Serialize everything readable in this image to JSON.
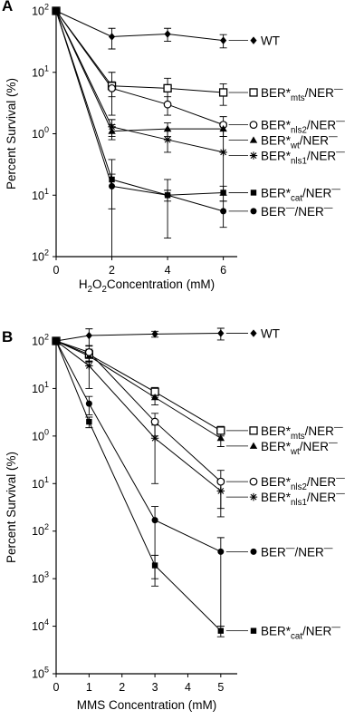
{
  "panels": [
    {
      "letter": "A",
      "ylabel": "Percent Survival (%)",
      "xlabel_parts": [
        {
          "text": "H"
        },
        {
          "text": "2",
          "sub": true
        },
        {
          "text": "O"
        },
        {
          "text": "2",
          "sub": true
        },
        {
          "text": "Concentration (mM)"
        }
      ]
    },
    {
      "letter": "B",
      "ylabel": "Percent Survival (%)",
      "xlabel_parts": [
        {
          "text": "MMS Concentration (mM)"
        }
      ]
    }
  ],
  "chart_data": [
    {
      "type": "line",
      "title": "",
      "xlabel": "H2O2 Concentration (mM)",
      "ylabel": "Percent Survival (%)",
      "yscale": "log",
      "xlim": [
        0,
        6.5
      ],
      "xticks": [
        "0",
        "2",
        "4",
        "6"
      ],
      "ylim_exponents": [
        -2,
        2
      ],
      "ytick_labels": [
        {
          "base": "10",
          "exp": "2"
        },
        {
          "base": "10",
          "exp": "1"
        },
        {
          "base": "10",
          "exp": "0"
        },
        {
          "base": "10",
          "exp": "1"
        },
        {
          "base": "10",
          "exp": "2"
        }
      ],
      "x": [
        0,
        2,
        4,
        6
      ],
      "series": [
        {
          "name": "WT",
          "label_parts": [
            {
              "text": "WT"
            }
          ],
          "marker": "diamond",
          "values": [
            100,
            38,
            42,
            33
          ],
          "err": [
            0,
            14,
            10,
            8
          ]
        },
        {
          "name": "BER*mts/NER−",
          "label_parts": [
            {
              "text": "BER*"
            },
            {
              "text": "mts",
              "sub": true
            },
            {
              "text": "/NER"
            },
            {
              "text": "—",
              "sup": true
            }
          ],
          "marker": "square-open",
          "values": [
            100,
            6,
            5.5,
            4.7
          ],
          "err": [
            0,
            4,
            2.5,
            1.8
          ]
        },
        {
          "name": "BER*nls2/NER−",
          "label_parts": [
            {
              "text": "BER*"
            },
            {
              "text": "nls2",
              "sub": true
            },
            {
              "text": "/NER"
            },
            {
              "text": "—",
              "sup": true
            }
          ],
          "marker": "circle-open",
          "values": [
            100,
            5.5,
            3,
            1.4
          ],
          "err": [
            0,
            1.5,
            1,
            0.5
          ]
        },
        {
          "name": "BER*wt/NER−",
          "label_parts": [
            {
              "text": "BER*"
            },
            {
              "text": "wt",
              "sub": true
            },
            {
              "text": "/NER"
            },
            {
              "text": "—",
              "sup": true
            }
          ],
          "marker": "triangle",
          "values": [
            100,
            1.1,
            1.2,
            1.2
          ],
          "err": [
            0,
            0.3,
            0.3,
            0.3
          ]
        },
        {
          "name": "BER*nls1/NER−",
          "label_parts": [
            {
              "text": "BER*"
            },
            {
              "text": "nls1",
              "sub": true
            },
            {
              "text": "/NER"
            },
            {
              "text": "—",
              "sup": true
            }
          ],
          "marker": "star",
          "values": [
            100,
            1.3,
            0.8,
            0.5
          ],
          "err": [
            0,
            0.4,
            0.3,
            0.4
          ]
        },
        {
          "name": "BER*cat/NER−",
          "label_parts": [
            {
              "text": "BER*"
            },
            {
              "text": "cat",
              "sub": true
            },
            {
              "text": "/NER"
            },
            {
              "text": "—",
              "sup": true
            }
          ],
          "marker": "square",
          "values": [
            100,
            0.18,
            0.1,
            0.11
          ],
          "err": [
            0,
            0.2,
            0.08,
            0.03
          ]
        },
        {
          "name": "BER−/NER−",
          "label_parts": [
            {
              "text": "BER"
            },
            {
              "text": "—",
              "sup": true
            },
            {
              "text": "/NER"
            },
            {
              "text": "—",
              "sup": true
            }
          ],
          "marker": "circle",
          "values": [
            100,
            0.14,
            0.1,
            0.055
          ],
          "err": [
            0,
            0.08,
            0.02,
            0.025
          ]
        }
      ]
    },
    {
      "type": "line",
      "title": "",
      "xlabel": "MMS Concentration (mM)",
      "ylabel": "Percent Survival (%)",
      "yscale": "log",
      "xlim": [
        0,
        5.5
      ],
      "xticks": [
        "0",
        "1",
        "2",
        "3",
        "4",
        "5"
      ],
      "ylim_exponents": [
        -5,
        2
      ],
      "ytick_labels": [
        {
          "base": "10",
          "exp": "2"
        },
        {
          "base": "10",
          "exp": "1"
        },
        {
          "base": "10",
          "exp": "0"
        },
        {
          "base": "10",
          "exp": "1"
        },
        {
          "base": "10",
          "exp": "2"
        },
        {
          "base": "10",
          "exp": "3"
        },
        {
          "base": "10",
          "exp": "4"
        },
        {
          "base": "10",
          "exp": "5"
        }
      ],
      "x": [
        0,
        1,
        3,
        5
      ],
      "series": [
        {
          "name": "WT",
          "label_parts": [
            {
              "text": "WT"
            }
          ],
          "marker": "diamond",
          "values": [
            100,
            130,
            140,
            145
          ],
          "err": [
            0,
            50,
            20,
            40
          ]
        },
        {
          "name": "BER*mts/NER−",
          "label_parts": [
            {
              "text": "BER*"
            },
            {
              "text": "mts",
              "sub": true
            },
            {
              "text": "/NER"
            },
            {
              "text": "—",
              "sup": true
            }
          ],
          "marker": "square-open",
          "values": [
            100,
            52,
            8.5,
            1.3
          ],
          "err": [
            0,
            15,
            2,
            0.3
          ]
        },
        {
          "name": "BER*wt/NER−",
          "label_parts": [
            {
              "text": "BER*"
            },
            {
              "text": "wt",
              "sub": true
            },
            {
              "text": "/NER"
            },
            {
              "text": "—",
              "sup": true
            }
          ],
          "marker": "triangle",
          "values": [
            100,
            48,
            6.5,
            0.9
          ],
          "err": [
            0,
            12,
            2,
            0.3
          ]
        },
        {
          "name": "BER*nls2/NER−",
          "label_parts": [
            {
              "text": "BER*"
            },
            {
              "text": "nls2",
              "sub": true
            },
            {
              "text": "/NER"
            },
            {
              "text": "—",
              "sup": true
            }
          ],
          "marker": "circle-open",
          "values": [
            100,
            58,
            2,
            0.11
          ],
          "err": [
            0,
            20,
            1,
            0.08
          ]
        },
        {
          "name": "BER*nls1/NER−",
          "label_parts": [
            {
              "text": "BER*"
            },
            {
              "text": "nls1",
              "sub": true
            },
            {
              "text": "/NER"
            },
            {
              "text": "—",
              "sup": true
            }
          ],
          "marker": "star",
          "values": [
            100,
            30,
            0.9,
            0.07
          ],
          "err": [
            0,
            20,
            0.8,
            0.05
          ]
        },
        {
          "name": "BER−/NER−",
          "label_parts": [
            {
              "text": "BER"
            },
            {
              "text": "—",
              "sup": true
            },
            {
              "text": "/NER"
            },
            {
              "text": "—",
              "sup": true
            }
          ],
          "marker": "circle",
          "values": [
            100,
            4.8,
            0.017,
            0.0037
          ],
          "err": [
            0,
            2,
            0.016,
            0.0036
          ]
        },
        {
          "name": "BER*cat/NER−",
          "label_parts": [
            {
              "text": "BER*"
            },
            {
              "text": "cat",
              "sub": true
            },
            {
              "text": "/NER"
            },
            {
              "text": "—",
              "sup": true
            }
          ],
          "marker": "square",
          "values": [
            100,
            2,
            0.0019,
            8e-05
          ],
          "err": [
            0,
            0.5,
            0.0012,
            2e-05
          ]
        }
      ]
    }
  ]
}
